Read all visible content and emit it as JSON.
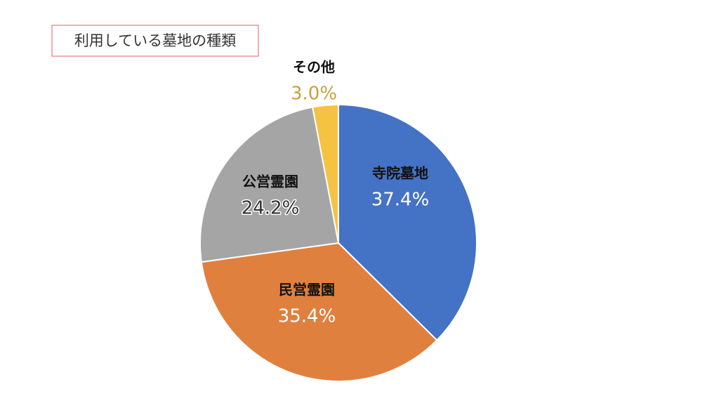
{
  "chart_data": {
    "type": "pie",
    "title": "利用している墓地の種類",
    "categories": [
      "寺院墓地",
      "民営霊園",
      "公営霊園",
      "その他"
    ],
    "values": [
      37.4,
      35.4,
      24.2,
      3.0
    ],
    "value_labels": [
      "37.4%",
      "35.4%",
      "24.2%",
      "3.0%"
    ],
    "colors": [
      "#4472c4",
      "#e0803f",
      "#a5a5a5",
      "#f5c242"
    ]
  }
}
